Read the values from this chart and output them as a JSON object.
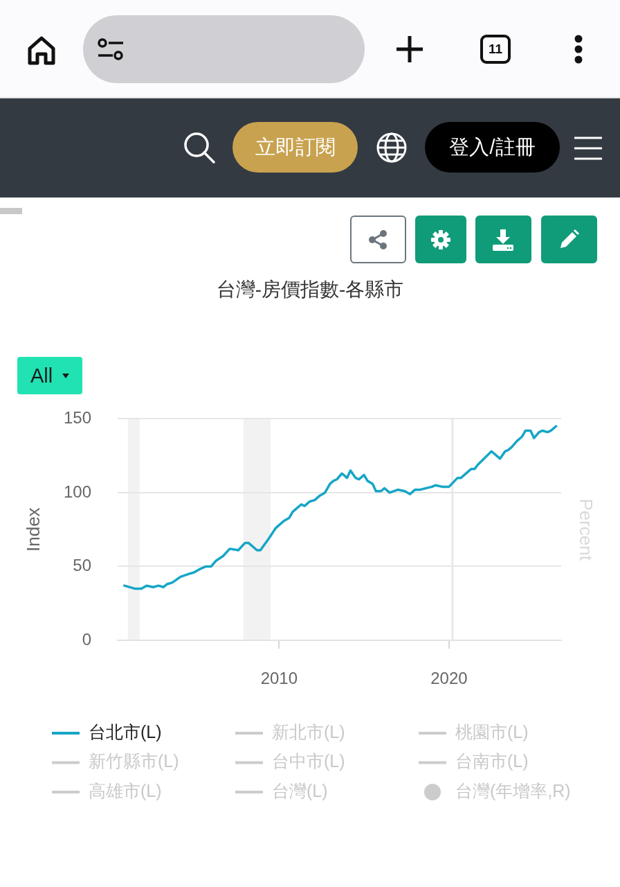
{
  "chart_data": {
    "type": "line",
    "title": "台灣-房價指數-各縣市",
    "ylabel": "Index",
    "y2label": "Percent",
    "annotations": [
      "立即訂閱",
      "登入/註冊",
      "All",
      "11"
    ],
    "x": [
      2000.9,
      2001.5,
      2001.9,
      2002.2,
      2002.6,
      2002.9,
      2003.2,
      2003.4,
      2003.7,
      2004.2,
      2004.7,
      2005.0,
      2005.3,
      2005.7,
      2006.0,
      2006.3,
      2006.7,
      2007.1,
      2007.6,
      2008.0,
      2008.2,
      2008.7,
      2008.9,
      2009.4,
      2009.8,
      2010.3,
      2010.6,
      2010.8,
      2011.3,
      2011.5,
      2011.8,
      2012.1,
      2012.4,
      2012.7,
      2013.0,
      2013.2,
      2013.4,
      2013.7,
      2014.0,
      2014.2,
      2014.5,
      2014.7,
      2015.0,
      2015.2,
      2015.5,
      2015.7,
      2016.0,
      2016.2,
      2016.5,
      2017.0,
      2017.4,
      2017.7,
      2018.0,
      2018.3,
      2019.0,
      2019.2,
      2019.6,
      2020.0,
      2020.5,
      2020.7,
      2021.3,
      2021.5,
      2021.7,
      2022.5,
      2023.0,
      2023.3,
      2023.5,
      2023.7,
      2024.0,
      2024.3,
      2024.5,
      2024.8,
      2025.0,
      2025.3,
      2025.5,
      2025.8,
      2026.0,
      2026.3
    ],
    "series": [
      {
        "name": "台北市(L)",
        "color": "#16a6c6",
        "values": [
          37,
          35,
          35,
          37,
          36,
          37,
          36,
          38,
          39,
          43,
          45,
          46,
          48,
          50,
          50,
          54,
          57,
          62,
          61,
          66,
          66,
          61,
          61,
          69,
          76,
          81,
          83,
          87,
          92,
          91,
          94,
          95,
          98,
          100,
          106,
          108,
          109,
          113,
          110,
          115,
          110,
          109,
          112,
          108,
          106,
          101,
          101,
          103,
          100,
          102,
          101,
          99,
          102,
          102,
          104,
          105,
          104,
          104,
          110,
          110,
          116,
          116,
          119,
          128,
          123,
          128,
          129,
          131,
          135,
          138,
          142,
          142,
          137,
          141,
          142,
          141,
          142,
          145
        ]
      },
      {
        "name": "新北市(L)",
        "color": "#cccccc",
        "values": [
          null,
          null,
          null,
          null,
          null,
          null,
          null,
          null,
          null,
          null,
          null,
          null,
          null,
          null,
          null,
          null,
          null,
          null,
          null,
          null,
          null,
          null,
          null,
          null,
          null,
          null,
          null,
          null,
          null,
          null,
          null,
          null,
          null,
          null,
          null,
          null,
          null,
          null,
          null,
          null,
          null,
          null,
          null,
          null,
          null,
          null,
          null,
          null,
          null,
          null,
          null,
          null,
          null,
          null,
          null,
          null,
          null,
          null,
          null,
          null,
          null,
          null,
          null,
          null,
          null,
          null,
          null,
          null,
          null,
          null,
          null,
          null,
          null,
          null,
          null,
          null,
          null,
          null
        ]
      },
      {
        "name": "桃園市(L)",
        "color": "#cccccc",
        "values": [
          null,
          null,
          null,
          null,
          null,
          null,
          null,
          null,
          null,
          null,
          null,
          null,
          null,
          null,
          null,
          null,
          null,
          null,
          null,
          null,
          null,
          null,
          null,
          null,
          null,
          null,
          null,
          null,
          null,
          null,
          null,
          null,
          null,
          null,
          null,
          null,
          null,
          null,
          null,
          null,
          null,
          null,
          null,
          null,
          null,
          null,
          null,
          null,
          null,
          null,
          null,
          null,
          null,
          null,
          null,
          null,
          null,
          null,
          null,
          null,
          null,
          null,
          null,
          null,
          null,
          null,
          null,
          null,
          null,
          null,
          null,
          null,
          null,
          null,
          null,
          null,
          null,
          null
        ]
      },
      {
        "name": "新竹縣市(L)",
        "color": "#cccccc",
        "values": [
          null,
          null,
          null,
          null,
          null,
          null,
          null,
          null,
          null,
          null,
          null,
          null,
          null,
          null,
          null,
          null,
          null,
          null,
          null,
          null,
          null,
          null,
          null,
          null,
          null,
          null,
          null,
          null,
          null,
          null,
          null,
          null,
          null,
          null,
          null,
          null,
          null,
          null,
          null,
          null,
          null,
          null,
          null,
          null,
          null,
          null,
          null,
          null,
          null,
          null,
          null,
          null,
          null,
          null,
          null,
          null,
          null,
          null,
          null,
          null,
          null,
          null,
          null,
          null,
          null,
          null,
          null,
          null,
          null,
          null,
          null,
          null,
          null,
          null,
          null,
          null,
          null,
          null
        ]
      },
      {
        "name": "台中市(L)",
        "color": "#cccccc",
        "values": [
          null,
          null,
          null,
          null,
          null,
          null,
          null,
          null,
          null,
          null,
          null,
          null,
          null,
          null,
          null,
          null,
          null,
          null,
          null,
          null,
          null,
          null,
          null,
          null,
          null,
          null,
          null,
          null,
          null,
          null,
          null,
          null,
          null,
          null,
          null,
          null,
          null,
          null,
          null,
          null,
          null,
          null,
          null,
          null,
          null,
          null,
          null,
          null,
          null,
          null,
          null,
          null,
          null,
          null,
          null,
          null,
          null,
          null,
          null,
          null,
          null,
          null,
          null,
          null,
          null,
          null,
          null,
          null,
          null,
          null,
          null,
          null,
          null,
          null,
          null,
          null,
          null,
          null
        ]
      },
      {
        "name": "台南市(L)",
        "color": "#cccccc",
        "values": [
          null,
          null,
          null,
          null,
          null,
          null,
          null,
          null,
          null,
          null,
          null,
          null,
          null,
          null,
          null,
          null,
          null,
          null,
          null,
          null,
          null,
          null,
          null,
          null,
          null,
          null,
          null,
          null,
          null,
          null,
          null,
          null,
          null,
          null,
          null,
          null,
          null,
          null,
          null,
          null,
          null,
          null,
          null,
          null,
          null,
          null,
          null,
          null,
          null,
          null,
          null,
          null,
          null,
          null,
          null,
          null,
          null,
          null,
          null,
          null,
          null,
          null,
          null,
          null,
          null,
          null,
          null,
          null,
          null,
          null,
          null,
          null,
          null,
          null,
          null,
          null,
          null,
          null
        ]
      },
      {
        "name": "高雄市(L)",
        "color": "#cccccc",
        "values": [
          null,
          null,
          null,
          null,
          null,
          null,
          null,
          null,
          null,
          null,
          null,
          null,
          null,
          null,
          null,
          null,
          null,
          null,
          null,
          null,
          null,
          null,
          null,
          null,
          null,
          null,
          null,
          null,
          null,
          null,
          null,
          null,
          null,
          null,
          null,
          null,
          null,
          null,
          null,
          null,
          null,
          null,
          null,
          null,
          null,
          null,
          null,
          null,
          null,
          null,
          null,
          null,
          null,
          null,
          null,
          null,
          null,
          null,
          null,
          null,
          null,
          null,
          null,
          null,
          null,
          null,
          null,
          null,
          null,
          null,
          null,
          null,
          null,
          null,
          null,
          null,
          null,
          null
        ]
      },
      {
        "name": "台灣(L)",
        "color": "#cccccc",
        "values": [
          null,
          null,
          null,
          null,
          null,
          null,
          null,
          null,
          null,
          null,
          null,
          null,
          null,
          null,
          null,
          null,
          null,
          null,
          null,
          null,
          null,
          null,
          null,
          null,
          null,
          null,
          null,
          null,
          null,
          null,
          null,
          null,
          null,
          null,
          null,
          null,
          null,
          null,
          null,
          null,
          null,
          null,
          null,
          null,
          null,
          null,
          null,
          null,
          null,
          null,
          null,
          null,
          null,
          null,
          null,
          null,
          null,
          null,
          null,
          null,
          null,
          null,
          null,
          null,
          null,
          null,
          null,
          null,
          null,
          null,
          null,
          null,
          null,
          null,
          null,
          null,
          null,
          null
        ]
      },
      {
        "name": "台灣(年增率,R)",
        "color": "#cccccc",
        "type": "bar",
        "axis": "y2",
        "values": [
          null,
          null,
          null,
          null,
          null,
          null,
          null,
          null,
          null,
          null,
          null,
          null,
          null,
          null,
          null,
          null,
          null,
          null,
          null,
          null,
          null,
          null,
          null,
          null,
          null,
          null,
          null,
          null,
          null,
          null,
          null,
          null,
          null,
          null,
          null,
          null,
          null,
          null,
          null,
          null,
          null,
          null,
          null,
          null,
          null,
          null,
          null,
          null,
          null,
          null,
          null,
          null,
          null,
          null,
          null,
          null,
          null,
          null,
          null,
          null,
          null,
          null,
          null,
          null,
          null,
          null,
          null,
          null,
          null,
          null,
          null,
          null,
          null,
          null,
          null,
          null,
          null,
          null
        ]
      }
    ],
    "xlim": [
      2000.5,
      2026.6
    ],
    "xticks": [
      2010,
      2020
    ],
    "ylim": [
      0,
      150
    ],
    "yticks": [
      0,
      50,
      100,
      150
    ],
    "bands": [
      {
        "axis": "x",
        "from": 2001.1,
        "to": 2001.8,
        "color": "#f2f2f2"
      },
      {
        "axis": "x",
        "from": 2007.9,
        "to": 2009.5,
        "color": "#f2f2f2"
      }
    ],
    "ref_lines": [
      {
        "axis": "x",
        "value": 2020.2,
        "color": "#e8e8e8"
      }
    ],
    "grid": "y",
    "legend": "bottom",
    "marker": "none"
  }
}
